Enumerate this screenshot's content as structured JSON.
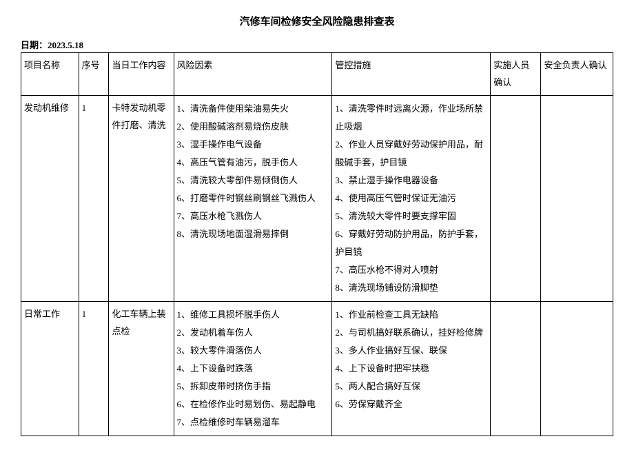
{
  "title": "汽修车间检修安全风险隐患排查表",
  "date_label": "日期：",
  "date_value": "2023.5.18",
  "headers": {
    "project": "项目名称",
    "seq": "序号",
    "work": "当日工作内容",
    "risk": "风险因素",
    "control": "管控措施",
    "staff": "实施人员确认",
    "safety": "安全负责人确认"
  },
  "rows": [
    {
      "project": "发动机维修",
      "seq": "1",
      "work": "卡特发动机零件打磨、清洗",
      "risk": "1、清洗备件使用柴油易失火\n2、使用酸碱溶剂易烧伤皮肤\n3、湿手操作电气设备\n4、高压气管有油污，脱手伤人\n5、清洗较大零部件易倾倒伤人\n6、打磨零件时钢丝刷钢丝飞溅伤人\n7、高压水枪飞溅伤人\n8、清洗现场地面湿滑易摔倒",
      "control": "1、清洗零件时远离火源，作业场所禁止吸烟\n2、作业人员穿戴好劳动保护用品，耐酸碱手套，护目镜\n3、禁止湿手操作电器设备\n4、使用高压气管时保证无油污\n5、清洗较大零件时要支撑牢固\n6、穿戴好劳动防护用品，防护手套，护目镜\n7、高压水枪不得对人喷射\n8、清洗现场铺设防滑脚垫",
      "staff": "",
      "safety": ""
    },
    {
      "project": "日常工作",
      "seq": "1",
      "work": "化工车辆上装点检",
      "risk": "1、维修工具损坏脱手伤人\n2、发动机着车伤人\n3、较大零件滑落伤人\n4、上下设备时跌落\n5、拆卸皮带时挤伤手指\n6、在检修作业时易划伤、易起静电\n7、点检维修时车辆易溜车",
      "control": "1、作业前检查工具无缺陷\n2、与司机搞好联系确认，挂好检修牌\n3、多人作业搞好互保、联保\n4、上下设备时把牢扶稳\n5、两人配合搞好互保\n6、劳保穿戴齐全",
      "staff": "",
      "safety": ""
    }
  ]
}
